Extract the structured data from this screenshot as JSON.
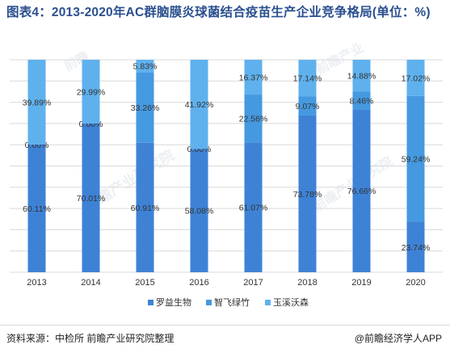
{
  "title": "图表4：2013-2020年AC群脑膜炎球菌结合疫苗生产企业竞争格局(单位：%)",
  "source": "资料来源：中检所 前瞻产业研究院整理",
  "brand": "@前瞻经济学人APP",
  "watermarks": [
    "前瞻",
    "前瞻产业",
    "前瞻产业研究院",
    "前瞻产业研究院"
  ],
  "colors": {
    "series1": "#3e82d6",
    "series2": "#4599e0",
    "series3": "#5fb1ee",
    "grid": "#d9d9d9",
    "title": "#2a4f8f"
  },
  "chart_data": {
    "type": "bar",
    "stacked": true,
    "categories": [
      "2013",
      "2014",
      "2015",
      "2016",
      "2017",
      "2018",
      "2019",
      "2020"
    ],
    "series": [
      {
        "name": "罗益生物",
        "values": [
          60.11,
          70.01,
          60.91,
          58.08,
          61.07,
          73.78,
          76.66,
          23.74
        ],
        "labels": [
          "60.11%",
          "70.01%",
          "60.91%",
          "58.08%",
          "61.07%",
          "73.78%",
          "76.66%",
          "23.74%"
        ]
      },
      {
        "name": "智飞绿竹",
        "values": [
          0.0,
          0.0,
          33.26,
          0.0,
          22.56,
          9.07,
          8.46,
          59.24
        ],
        "labels": [
          "0.00%",
          "0.00%",
          "33.26%",
          "0.00%",
          "22.56%",
          "9.07%",
          "8.46%",
          "59.24%"
        ]
      },
      {
        "name": "玉溪沃森",
        "values": [
          39.89,
          29.99,
          5.83,
          41.92,
          16.37,
          17.14,
          14.88,
          17.02
        ],
        "labels": [
          "39.89%",
          "29.99%",
          "5.83%",
          "41.92%",
          "16.37%",
          "17.14%",
          "14.88%",
          "17.02%"
        ]
      }
    ],
    "ylim": [
      0,
      100
    ],
    "grid": true,
    "legend_position": "bottom"
  }
}
